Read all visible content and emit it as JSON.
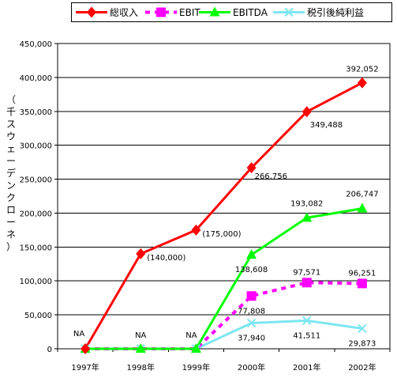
{
  "chart_data": {
    "type": "line",
    "title": "",
    "xlabel": "",
    "ylabel": "（千スウェーデンクローネ）",
    "categories": [
      "1997年",
      "1998年",
      "1999年",
      "2000年",
      "2001年",
      "2002年"
    ],
    "ylim": [
      0,
      450000
    ],
    "yticks": [
      0,
      50000,
      100000,
      150000,
      200000,
      250000,
      300000,
      350000,
      400000,
      450000
    ],
    "ytick_labels": [
      "0",
      "50,000",
      "100,000",
      "150,000",
      "200,000",
      "250,000",
      "300,000",
      "350,000",
      "400,000",
      "450,000"
    ],
    "grid": "horizontal",
    "legend_position": "top",
    "series": [
      {
        "name": "総収入",
        "color": "#ff0000",
        "line": "solid",
        "marker": "diamond",
        "values": [
          0,
          140000,
          175000,
          266756,
          349488,
          392052
        ],
        "labels": [
          "NA",
          "(140,000)",
          "(175,000)",
          "266,756",
          "349,488",
          "392,052"
        ]
      },
      {
        "name": "EBIT",
        "color": "#ff00ff",
        "line": "dashed",
        "marker": "square",
        "values": [
          0,
          0,
          0,
          77808,
          97571,
          96251
        ],
        "labels": [
          "",
          "",
          "",
          "77,808",
          "97,571",
          "96,251"
        ]
      },
      {
        "name": "EBITDA",
        "color": "#00ff00",
        "line": "solid",
        "marker": "triangle",
        "values": [
          0,
          0,
          0,
          138608,
          193082,
          206747
        ],
        "labels": [
          "",
          "NA",
          "NA",
          "138,608",
          "193,082",
          "206,747"
        ]
      },
      {
        "name": "税引後純利益",
        "color": "#7ee6f0",
        "line": "solid",
        "marker": "x",
        "values": [
          0,
          0,
          0,
          37940,
          41511,
          29873
        ],
        "labels": [
          "",
          "",
          "",
          "37,940",
          "41,511",
          "29,873"
        ]
      }
    ]
  }
}
